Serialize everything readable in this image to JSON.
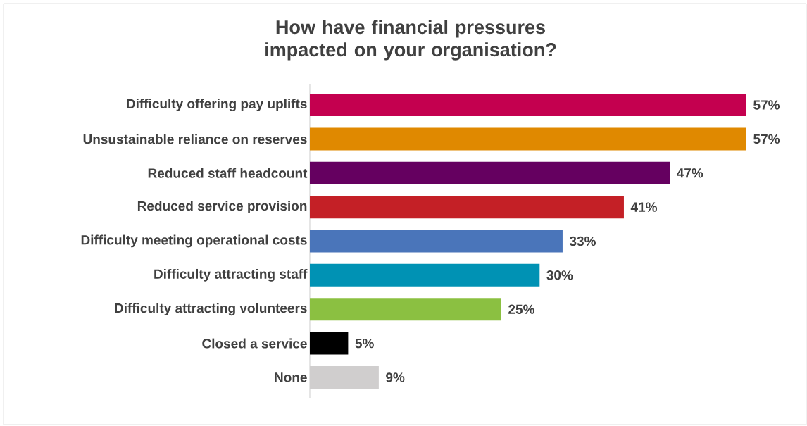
{
  "chart_data": {
    "type": "bar",
    "orientation": "horizontal",
    "title": "How have financial pressures impacted on your organisation?",
    "categories": [
      "Difficulty offering pay uplifts",
      "Unsustainable reliance on reserves",
      "Reduced staff headcount",
      "Reduced service provision",
      "Difficulty meeting operational costs",
      "Difficulty attracting staff",
      "Difficulty attracting volunteers",
      "Closed a service",
      "None"
    ],
    "values": [
      57,
      57,
      47,
      41,
      33,
      30,
      25,
      5,
      9
    ],
    "value_labels": [
      "57%",
      "57%",
      "47%",
      "41%",
      "33%",
      "30%",
      "25%",
      "5%",
      "9%"
    ],
    "colors": [
      "#c4004f",
      "#e08900",
      "#650060",
      "#c42026",
      "#4a75ba",
      "#0092b4",
      "#8bc041",
      "#000000",
      "#d0cece"
    ]
  }
}
